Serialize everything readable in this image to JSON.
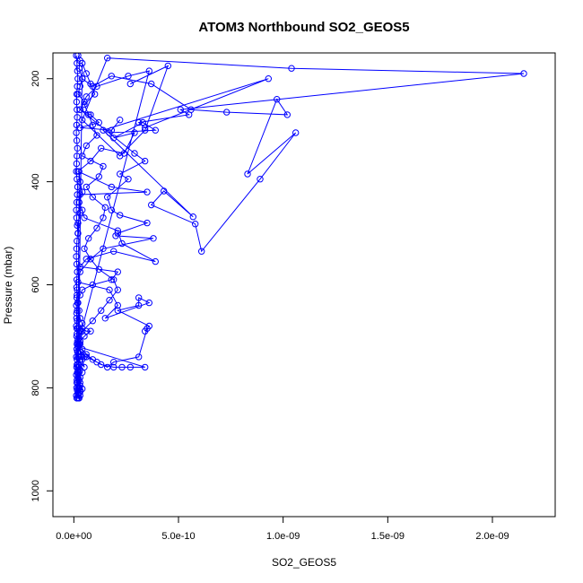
{
  "chart_data": {
    "type": "scatter",
    "title": "ATOM3 Northbound SO2_GEOS5",
    "xlabel": "SO2_GEOS5",
    "ylabel": "Pressure (mbar)",
    "xlim": [
      -1e-10,
      2.3e-09
    ],
    "ylim": [
      1050,
      150
    ],
    "y_inverted": true,
    "grid": false,
    "legend": "none",
    "connected_points": true,
    "marker": "open-circle",
    "color": "#0000ff",
    "xticks": [
      0,
      5e-10,
      1e-09,
      1.5e-09,
      2e-09
    ],
    "xtick_labels": [
      "0.0e+00",
      "5.0e-10",
      "1.0e-09",
      "1.5e-09",
      "2.0e-09"
    ],
    "yticks": [
      200,
      400,
      600,
      800,
      1000
    ],
    "ytick_labels": [
      "200",
      "400",
      "600",
      "800",
      "1000"
    ],
    "series": [
      {
        "values_x": [
          2e-11,
          3e-11,
          2.5e-11,
          4e-11,
          3e-11,
          2e-11,
          5e-11,
          3e-11,
          8e-11,
          1.2e-10,
          3e-11,
          1.8e-10,
          2.2e-10,
          1.7e-10,
          3.9e-10,
          3.3e-10,
          1.9e-10,
          2.9e-10,
          2.4e-10,
          1.3e-10,
          8e-11,
          2e-11,
          1.8e-10,
          3.5e-10,
          3e-11,
          2.5e-11,
          4e-11,
          5e-11,
          2.1e-10,
          2.3e-10,
          3.9e-10,
          1.9e-10,
          6e-11,
          3e-11,
          2.1e-10,
          1.8e-10,
          9e-11,
          4e-11,
          3e-11,
          2e-11,
          2.5e-11,
          3e-11,
          4e-11,
          3e-11,
          2e-11,
          2.5e-11,
          3e-11,
          5e-11,
          3e-11,
          2e-11,
          3e-11,
          4e-11,
          2e-11,
          3e-11,
          2.5e-11,
          3e-11,
          2e-11,
          3e-11,
          2.5e-11,
          2e-11,
          3e-11,
          4e-11,
          3e-11,
          2e-11,
          2.5e-11,
          3e-11,
          2e-11,
          2.5e-11,
          2e-11,
          2e-11,
          1.8e-11,
          2e-11,
          2.2e-11,
          2e-11,
          4e-11,
          6e-11,
          8e-11,
          1e-10,
          5e-11,
          7e-11,
          9e-11,
          1.1e-10,
          6e-11,
          4e-11,
          1.4e-10,
          1.2e-10,
          6e-11,
          9e-11,
          1.5e-10,
          1.4e-10,
          1.1e-10,
          7e-11,
          5e-11,
          8e-11,
          1.2e-10,
          1.9e-10,
          2.1e-10,
          1.7e-10,
          1.3e-10,
          9e-11,
          4e-11,
          3e-11,
          2e-11,
          2e-11,
          3e-11,
          5e-11,
          4e-11,
          3e-11,
          2e-11,
          3.6e-10,
          2.6e-10,
          1.1e-10,
          6e-11,
          3e-11,
          2.9e-10,
          3.4e-10,
          2.2e-10,
          2.6e-10,
          1.6e-10,
          1.8e-10,
          2.2e-10,
          3.5e-10,
          2.1e-10,
          2e-10,
          3.8e-10,
          1.4e-10,
          8e-11,
          3e-11,
          2e-11,
          1.7e-10,
          2.1e-10,
          1.5e-10,
          3.6e-10,
          3.1e-10,
          3.1e-10,
          2.1e-10,
          3.6e-10,
          3.4e-10,
          3.5e-10,
          3.1e-10,
          1.9e-10,
          1.6e-10,
          1.1e-10,
          6e-11,
          3e-11,
          2e-11,
          3.4e-10,
          2.7e-10,
          2.3e-10,
          1.9e-10,
          1.3e-10,
          9e-11,
          6e-11,
          4e-11,
          3e-11,
          2e-11,
          2e-11,
          4e-11,
          6e-11,
          8e-11,
          5e-11,
          3e-11,
          2e-11,
          2e-11,
          2.5e-11,
          3e-11,
          4e-11,
          2.5e-11,
          3e-11,
          2e-11,
          2e-11
        ],
        "values_y": [
          155,
          165,
          180,
          200,
          215,
          230,
          245,
          260,
          270,
          285,
          295,
          300,
          280,
          305,
          300,
          285,
          315,
          305,
          345,
          335,
          360,
          380,
          410,
          420,
          425,
          440,
          455,
          470,
          495,
          520,
          555,
          535,
          550,
          565,
          575,
          590,
          600,
          610,
          620,
          635,
          650,
          665,
          675,
          690,
          705,
          715,
          730,
          740,
          745,
          755,
          765,
          770,
          780,
          790,
          800,
          805,
          810,
          815,
          820,
          812,
          808,
          802,
          796,
          790,
          785,
          780,
          774,
          770,
          765,
          760,
          770,
          800,
          815,
          820,
          170,
          190,
          210,
          230,
          250,
          270,
          290,
          310,
          330,
          350,
          370,
          390,
          410,
          430,
          450,
          470,
          490,
          510,
          530,
          550,
          570,
          590,
          610,
          630,
          650,
          670,
          690,
          710,
          730,
          740,
          750,
          760,
          745,
          730,
          715,
          185,
          195,
          215,
          235,
          260,
          345,
          360,
          385,
          395,
          430,
          455,
          465,
          480,
          500,
          505,
          510,
          530,
          550,
          575,
          595,
          610,
          640,
          665,
          635,
          625,
          640,
          650,
          680,
          690,
          685,
          740,
          750,
          760,
          750,
          740,
          730,
          720,
          760,
          760,
          760,
          760,
          755,
          745,
          735,
          725,
          715,
          705,
          685,
          685,
          690,
          690,
          700,
          710,
          720,
          730,
          380,
          400,
          420,
          440,
          460,
          480,
          500
        ]
      },
      {
        "values_x": [
          4e-11,
          9e-11,
          1.8e-10,
          3.7e-10,
          5.6e-10,
          7.3e-10,
          1.02e-09,
          9.7e-10,
          8.3e-10,
          1.06e-09,
          8.9e-10,
          6.1e-10,
          5.8e-10,
          3.7e-10,
          4.3e-10,
          5.7e-10,
          1.4e-10,
          9.3e-10,
          3.4e-10,
          3.1e-10,
          5.5e-10,
          5.1e-10,
          2.15e-09,
          1.04e-09,
          1.6e-10,
          4e-11,
          2.2e-10,
          3.4e-10,
          4.5e-10,
          2.7e-10
        ],
        "values_y": [
          200,
          215,
          195,
          210,
          260,
          265,
          270,
          240,
          385,
          305,
          395,
          535,
          482,
          445,
          418,
          468,
          300,
          200,
          295,
          285,
          270,
          260,
          190,
          180,
          160,
          280,
          350,
          300,
          175,
          210
        ]
      },
      {
        "values_x": [
          1.2e-11,
          1.5e-11,
          1.7e-11,
          1.9e-11,
          1.6e-11,
          1.4e-11,
          1.3e-11,
          1.5e-11,
          1.6e-11,
          1.3e-11,
          1.2e-11,
          1.4e-11,
          1.7e-11,
          1.5e-11,
          1.3e-11,
          1.2e-11,
          1.5e-11,
          1.8e-11,
          1.6e-11,
          1.4e-11,
          1.2e-11,
          1.3e-11,
          1.6e-11,
          1.9e-11,
          1.5e-11,
          1.3e-11,
          1.2e-11,
          1.4e-11,
          1.6e-11,
          1.4e-11,
          1.3e-11,
          1.5e-11,
          1.8e-11,
          1.6e-11,
          1.3e-11,
          1.2e-11,
          1.5e-11,
          1.7e-11,
          1.4e-11,
          1.2e-11,
          1.5e-11,
          1.7e-11,
          1.5e-11,
          1.3e-11,
          1.2e-11,
          1.4e-11,
          1.6e-11,
          1.4e-11,
          1.2e-11,
          1.3e-11,
          1.5e-11,
          1.7e-11,
          1.5e-11,
          1.3e-11,
          1.4e-11,
          1.6e-11,
          1.3e-11,
          1.2e-11,
          1.4e-11,
          1.6e-11
        ],
        "values_y": [
          155,
          170,
          185,
          200,
          215,
          230,
          245,
          260,
          275,
          290,
          305,
          320,
          335,
          350,
          365,
          380,
          395,
          410,
          425,
          440,
          455,
          470,
          485,
          500,
          515,
          530,
          545,
          560,
          575,
          590,
          605,
          620,
          635,
          650,
          665,
          680,
          695,
          710,
          725,
          740,
          755,
          770,
          785,
          800,
          815,
          820,
          805,
          790,
          775,
          760,
          745,
          730,
          715,
          700,
          685,
          670,
          655,
          640,
          625,
          610
        ]
      }
    ]
  }
}
